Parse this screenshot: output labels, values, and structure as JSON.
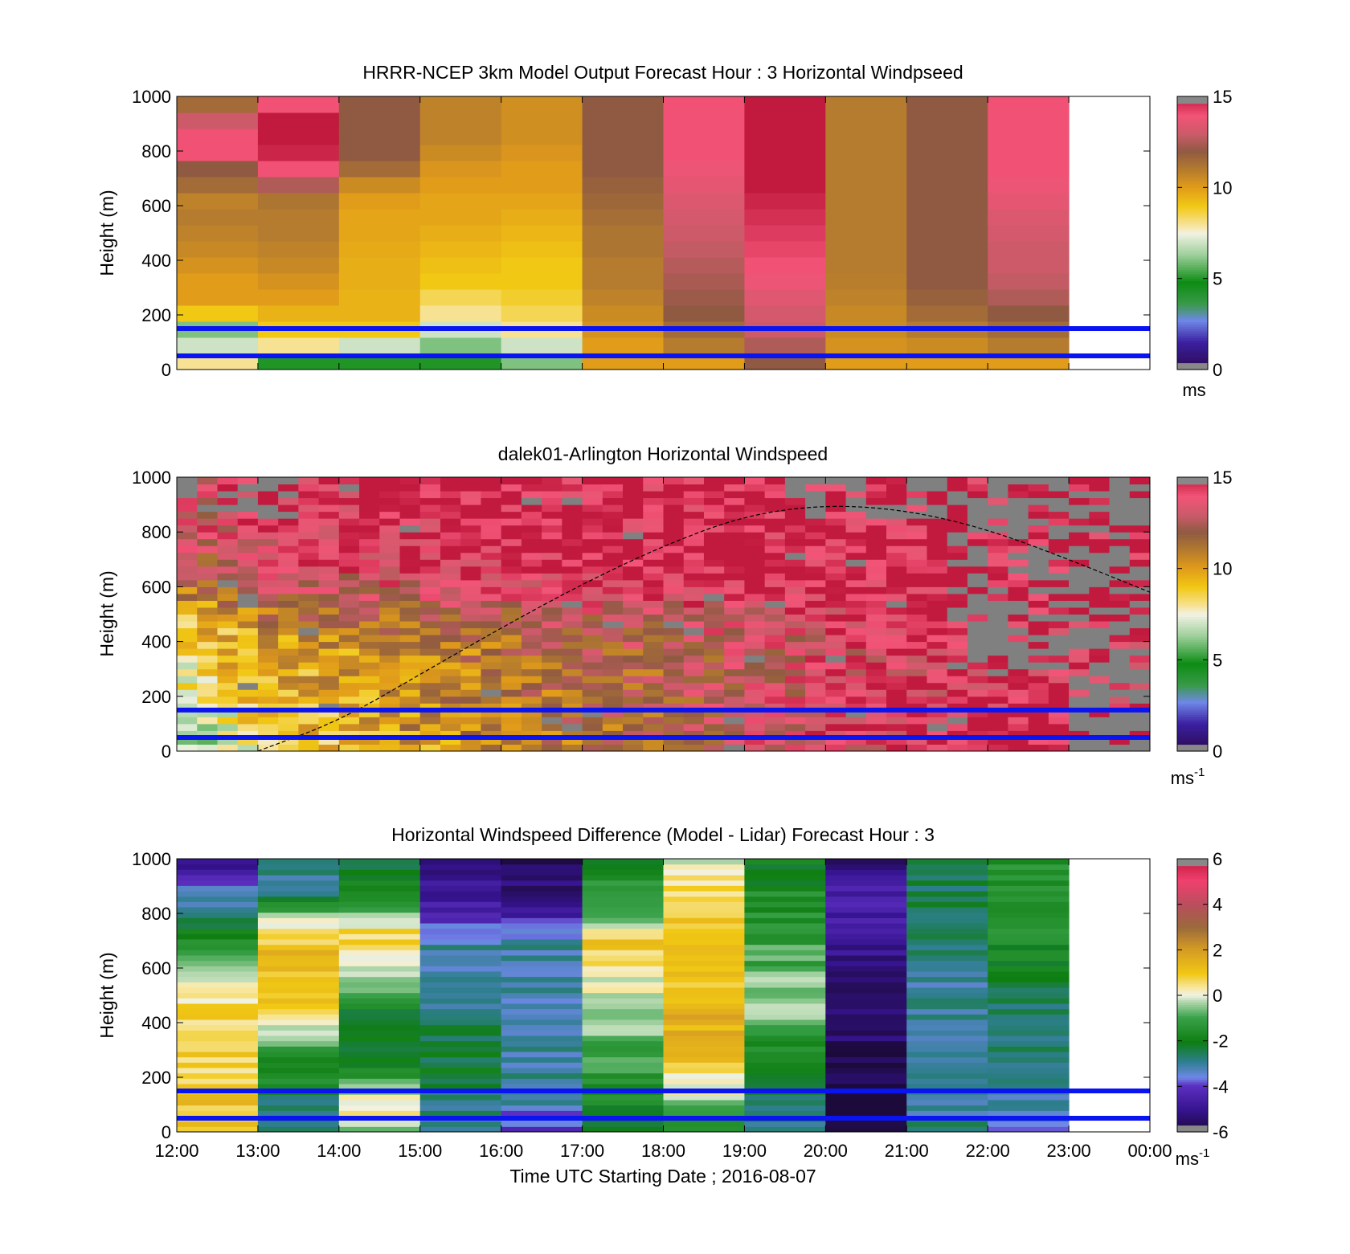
{
  "chart_data": [
    {
      "type": "heatmap",
      "title": "HRRR-NCEP 3km Model Output   Forecast Hour : 3 Horizontal Windpseed",
      "ylabel": "Height (m)",
      "xlabel": "",
      "ylim": [
        0,
        1000
      ],
      "xlim": [
        "12:00",
        "00:00"
      ],
      "yticks": [
        0,
        200,
        400,
        600,
        800,
        1000
      ],
      "colorbar": {
        "ticks": [
          0,
          5,
          10,
          15
        ],
        "range": [
          0,
          15
        ],
        "unit": "ms",
        "unit_sup": "",
        "scheme": "speed"
      },
      "reference_lines_m": [
        50,
        150
      ],
      "hour_starts": [
        "12:00",
        "13:00",
        "14:00",
        "15:00",
        "16:00",
        "17:00",
        "18:00",
        "19:00",
        "20:00",
        "21:00",
        "22:00"
      ],
      "profiles_ms": [
        [
          8,
          7,
          6,
          9,
          10,
          10,
          10.3,
          10.6,
          10.8,
          11.0,
          10.8,
          11.5,
          12.0,
          14.0,
          14.0,
          13.0,
          11.5
        ],
        [
          5,
          8,
          9,
          9.5,
          10,
          10.3,
          10.6,
          10.8,
          11.0,
          11.0,
          11.2,
          12.5,
          14.0,
          14.8,
          15.0,
          15.0,
          14.0
        ],
        [
          5,
          7,
          9,
          9.5,
          9.5,
          9.6,
          9.6,
          9.7,
          9.8,
          9.8,
          10.0,
          10.5,
          11.5,
          12.0,
          12.0,
          12.0,
          12.0
        ],
        [
          5,
          6,
          7,
          8,
          8.5,
          9.0,
          9.2,
          9.4,
          9.6,
          9.8,
          9.8,
          10.0,
          10.2,
          10.5,
          10.8,
          10.8,
          10.8
        ],
        [
          6,
          7,
          8,
          8.5,
          8.8,
          9.0,
          9.0,
          9.2,
          9.4,
          9.6,
          9.8,
          10.0,
          10.0,
          10.2,
          10.4,
          10.4,
          10.4
        ],
        [
          10,
          10,
          10.3,
          10.5,
          10.8,
          11.0,
          11.0,
          11.2,
          11.2,
          11.4,
          11.6,
          11.8,
          12.0,
          12.0,
          12.0,
          12.0,
          12.0
        ],
        [
          10,
          11,
          11.5,
          12.0,
          12.2,
          12.4,
          12.6,
          12.8,
          13.0,
          13.2,
          13.4,
          13.6,
          13.8,
          14.0,
          14.0,
          14.0,
          14.0
        ],
        [
          12,
          12.5,
          13.0,
          13.2,
          13.5,
          13.8,
          14.0,
          14.2,
          14.4,
          14.6,
          14.8,
          15.0,
          15.0,
          15.0,
          15.0,
          15.0,
          15.0
        ],
        [
          10,
          10.3,
          10.5,
          10.6,
          10.8,
          10.9,
          11.0,
          11.0,
          11.0,
          11.0,
          11.0,
          11.0,
          11.0,
          11.0,
          11.0,
          11.0,
          11.0
        ],
        [
          10,
          10.5,
          11.0,
          11.5,
          11.8,
          12.0,
          12.0,
          12.0,
          12.0,
          12.0,
          12.0,
          12.0,
          12.0,
          12.0,
          12.0,
          12.0,
          12.0
        ],
        [
          10,
          11.0,
          11.5,
          12.0,
          12.5,
          12.8,
          13.0,
          13.0,
          13.2,
          13.4,
          13.6,
          13.8,
          14.0,
          14.0,
          14.0,
          14.0,
          14.0
        ]
      ]
    },
    {
      "type": "heatmap",
      "title": "dalek01-Arlington  Horizontal Windspeed",
      "ylabel": "Height (m)",
      "xlabel": "",
      "ylim": [
        0,
        1000
      ],
      "xlim": [
        "12:00",
        "00:00"
      ],
      "yticks": [
        0,
        200,
        400,
        600,
        800,
        1000
      ],
      "colorbar": {
        "ticks": [
          0,
          5,
          10,
          15
        ],
        "range": [
          0,
          15
        ],
        "unit": "ms",
        "unit_sup": "-1",
        "scheme": "speed"
      },
      "reference_lines_m": [
        50,
        150
      ],
      "boundary_curve": [
        {
          "time": "13:00",
          "height_m": 0
        },
        {
          "time": "14:00",
          "height_m": 110
        },
        {
          "time": "15:00",
          "height_m": 280
        },
        {
          "time": "16:00",
          "height_m": 450
        },
        {
          "time": "17:00",
          "height_m": 610
        },
        {
          "time": "18:00",
          "height_m": 750
        },
        {
          "time": "19:00",
          "height_m": 860
        },
        {
          "time": "20:00",
          "height_m": 900
        },
        {
          "time": "21:00",
          "height_m": 880
        },
        {
          "time": "22:00",
          "height_m": 810
        },
        {
          "time": "23:00",
          "height_m": 700
        },
        {
          "time": "00:00",
          "height_m": 580
        }
      ],
      "hourly_mean_ms": [
        [
          6,
          8,
          9,
          10,
          10.5,
          11,
          12,
          13,
          13.5,
          14,
          15
        ],
        [
          6,
          8.5,
          9.5,
          10.5,
          11,
          11.5,
          12,
          13,
          14,
          14.5,
          15
        ],
        [
          7,
          9,
          10,
          10.5,
          11,
          11.5,
          12,
          13,
          13.5,
          14,
          14.5
        ],
        [
          8,
          9.5,
          10,
          10.5,
          11,
          11.5,
          12,
          12.5,
          13.5,
          14,
          14.5
        ],
        [
          8,
          10,
          10.5,
          11,
          11.5,
          12,
          12.5,
          13,
          13.5,
          14,
          14.5
        ],
        [
          9,
          11,
          11.5,
          12,
          12.5,
          13,
          13,
          13.5,
          14,
          14.5,
          15
        ],
        [
          11,
          12.5,
          13,
          13.5,
          14,
          14,
          14.5,
          14.5,
          15,
          15,
          15
        ],
        [
          12,
          13.5,
          14,
          14.5,
          14.5,
          15,
          15,
          15,
          15,
          15,
          15
        ],
        [
          13,
          14,
          14.5,
          14.5,
          15,
          15,
          15,
          15,
          15,
          15,
          15
        ],
        [
          13,
          14,
          14.5,
          15,
          15,
          15,
          15,
          15,
          15,
          15,
          15
        ],
        [
          13,
          14.5,
          14.5,
          15,
          15,
          15,
          15,
          15,
          15,
          15,
          15
        ]
      ]
    },
    {
      "type": "heatmap",
      "title": "Horizontal Windspeed Difference (Model - Lidar) Forecast Hour : 3",
      "ylabel": "Height (m)",
      "xlabel": "Time UTC  Starting Date ; 2016-08-07",
      "ylim": [
        0,
        1000
      ],
      "xlim": [
        "12:00",
        "00:00"
      ],
      "xticks": [
        "12:00",
        "13:00",
        "14:00",
        "15:00",
        "16:00",
        "17:00",
        "18:00",
        "19:00",
        "20:00",
        "21:00",
        "22:00",
        "23:00",
        "00:00"
      ],
      "yticks": [
        0,
        200,
        400,
        600,
        800,
        1000
      ],
      "colorbar": {
        "ticks": [
          -6,
          -4,
          -2,
          0,
          2,
          4,
          6
        ],
        "range": [
          -6,
          6
        ],
        "unit": "ms",
        "unit_sup": "-1",
        "scheme": "diff"
      },
      "reference_lines_m": [
        50,
        150
      ],
      "profiles_ms": [
        [
          1.0,
          1.0,
          1.2,
          0.5,
          0.8,
          1.0,
          0.5,
          0.8,
          0.2,
          -0.2,
          -1.0,
          -1.5,
          -2.0,
          -2.8,
          -3.5,
          -4.2,
          -5.0
        ],
        [
          -2.5,
          -3.0,
          -2.5,
          -1.5,
          -1.5,
          -1.0,
          0.0,
          0.5,
          1.0,
          1.0,
          1.5,
          1.0,
          0.5,
          -1.0,
          -2.5,
          -3.0,
          -3.0
        ],
        [
          -1.0,
          0.5,
          0.0,
          -1.0,
          -2.0,
          -2.0,
          -2.5,
          -2.0,
          -1.0,
          -0.5,
          0.0,
          1.0,
          0.5,
          -1.0,
          -1.5,
          -2.0,
          -2.5
        ],
        [
          -3.0,
          -2.8,
          -2.5,
          -2.5,
          -2.2,
          -2.5,
          -2.5,
          -2.8,
          -3.0,
          -3.0,
          -3.2,
          -3.0,
          -3.5,
          -4.5,
          -4.8,
          -5.0,
          -5.0
        ],
        [
          -4.0,
          -3.5,
          -3.0,
          -3.0,
          -3.0,
          -3.0,
          -3.0,
          -3.2,
          -3.2,
          -3.2,
          -3.0,
          -3.0,
          -3.5,
          -5.0,
          -5.2,
          -5.4,
          -5.5
        ],
        [
          -2.5,
          -2.0,
          -1.5,
          -1.5,
          -1.0,
          -1.0,
          -0.5,
          -0.5,
          0.0,
          0.0,
          0.5,
          1.0,
          0.5,
          -1.5,
          -1.0,
          -1.5,
          -2.0
        ],
        [
          -1.5,
          -1.0,
          0.0,
          0.2,
          1.0,
          1.2,
          1.5,
          1.5,
          1.2,
          1.0,
          1.0,
          1.5,
          1.2,
          1.0,
          0.5,
          0.5,
          0.0
        ],
        [
          -3.0,
          -2.5,
          -2.5,
          -2.0,
          -2.0,
          -1.5,
          -1.0,
          -0.5,
          -0.5,
          -0.5,
          -1.0,
          -1.0,
          -1.5,
          -1.5,
          -1.5,
          -2.0,
          -2.0
        ],
        [
          -6.0,
          -6.0,
          -6.0,
          -5.8,
          -5.8,
          -5.5,
          -5.5,
          -5.3,
          -5.3,
          -5.2,
          -5.0,
          -5.0,
          -4.8,
          -4.5,
          -4.5,
          -5.0,
          -5.5
        ],
        [
          -2.5,
          -3.0,
          -3.0,
          -3.2,
          -3.2,
          -3.2,
          -3.2,
          -3.0,
          -3.0,
          -3.0,
          -2.8,
          -2.8,
          -2.5,
          -2.5,
          -2.5,
          -2.5,
          -2.5
        ],
        [
          -3.5,
          -3.0,
          -3.0,
          -2.8,
          -2.8,
          -2.8,
          -2.5,
          -2.5,
          -2.5,
          -2.0,
          -2.0,
          -1.8,
          -1.5,
          -1.5,
          -1.5,
          -1.5,
          -1.5
        ]
      ]
    }
  ]
}
